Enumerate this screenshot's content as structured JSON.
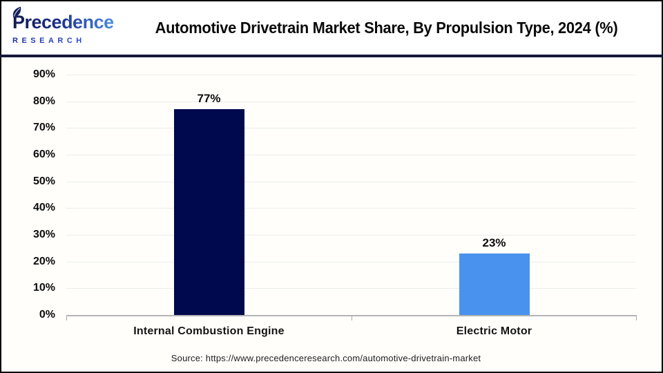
{
  "logo": {
    "brand": "Precedence",
    "subtitle": "RESEARCH"
  },
  "header": {
    "title": "Automotive Drivetrain Market Share, By Propulsion Type, 2024 (%)"
  },
  "chart_data": {
    "type": "bar",
    "title": "Automotive Drivetrain Market Share, By Propulsion Type, 2024 (%)",
    "categories": [
      "Internal Combustion Engine",
      "Electric Motor"
    ],
    "values": [
      77,
      23
    ],
    "value_labels": [
      "77%",
      "23%"
    ],
    "bar_colors": [
      "#01094e",
      "#4992ee"
    ],
    "xlabel": "",
    "ylabel": "",
    "ylim": [
      0,
      90
    ],
    "ytick_interval": 10,
    "ytick_labels": [
      "0%",
      "10%",
      "20%",
      "30%",
      "40%",
      "50%",
      "60%",
      "70%",
      "80%",
      "90%"
    ],
    "grid": true,
    "legend": false
  },
  "footer": {
    "source": "Source: https://www.precedenceresearch.com/automotive-drivetrain-market"
  },
  "colors": {
    "bar_ice": "#01094e",
    "bar_ev": "#4992ee",
    "gridline": "#ececec",
    "axis_line": "#b3b3b3",
    "header_divider": "#141838",
    "page_border": "#000000",
    "chart_bg": "#fffefb"
  }
}
